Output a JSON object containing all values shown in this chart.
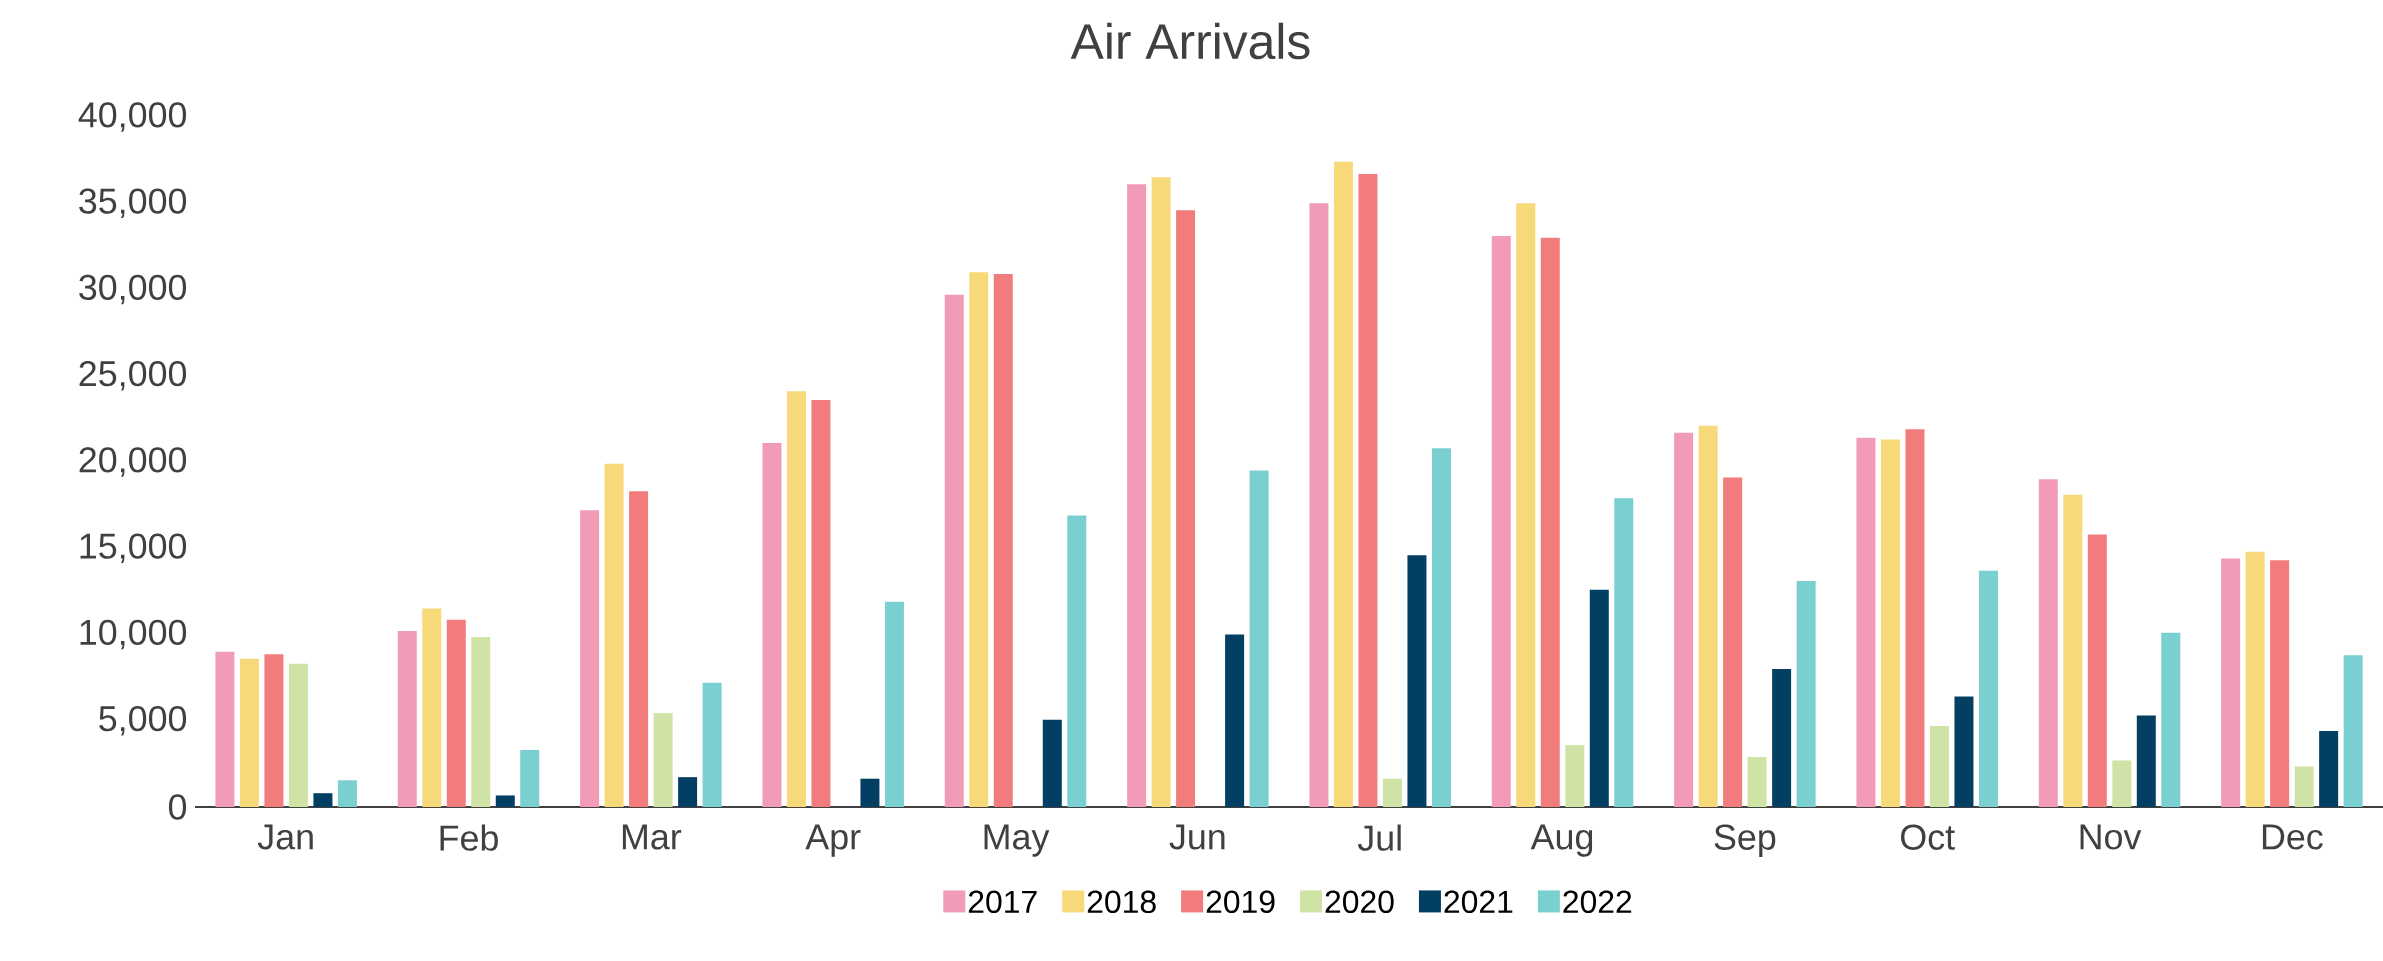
{
  "chart_data": {
    "type": "bar",
    "title": "Air Arrivals",
    "categories": [
      "Jan",
      "Feb",
      "Mar",
      "Apr",
      "May",
      "Jun",
      "Jul",
      "Aug",
      "Sep",
      "Oct",
      "Nov",
      "Dec"
    ],
    "series": [
      {
        "name": "2017",
        "color": "#f29bb6",
        "values": [
          9000,
          10200,
          17200,
          21100,
          29700,
          36100,
          35000,
          33100,
          21700,
          21400,
          19000,
          14400
        ]
      },
      {
        "name": "2018",
        "color": "#f7d97a",
        "values": [
          8600,
          11500,
          19900,
          24100,
          31000,
          36500,
          37400,
          35000,
          22100,
          21300,
          18100,
          14800
        ]
      },
      {
        "name": "2019",
        "color": "#f27c7c",
        "values": [
          8850,
          10850,
          18300,
          23600,
          30900,
          34600,
          36700,
          33000,
          19100,
          21900,
          15800,
          14300
        ]
      },
      {
        "name": "2020",
        "color": "#cfe3a7",
        "values": [
          8300,
          9850,
          5450,
          null,
          null,
          null,
          1640,
          3600,
          2900,
          4700,
          2700,
          2350
        ]
      },
      {
        "name": "2021",
        "color": "#033f63",
        "values": [
          800,
          670,
          1730,
          1640,
          5060,
          10000,
          14600,
          12600,
          8000,
          6400,
          5300,
          4400
        ]
      },
      {
        "name": "2022",
        "color": "#7acfd1",
        "values": [
          1550,
          3300,
          7200,
          11900,
          16900,
          19500,
          20800,
          17900,
          13100,
          13700,
          10100,
          8800
        ]
      }
    ],
    "ylim": [
      0,
      40000
    ],
    "yticks": [
      {
        "value": 0,
        "label": "0"
      },
      {
        "value": 5000,
        "label": "5,000"
      },
      {
        "value": 10000,
        "label": "10,000"
      },
      {
        "value": 15000,
        "label": "15,000"
      },
      {
        "value": 20000,
        "label": "20,000"
      },
      {
        "value": 25000,
        "label": "25,000"
      },
      {
        "value": 30000,
        "label": "30,000"
      },
      {
        "value": 35000,
        "label": "35,000"
      },
      {
        "value": 40000,
        "label": "40,000"
      }
    ],
    "legend": "bottom"
  }
}
